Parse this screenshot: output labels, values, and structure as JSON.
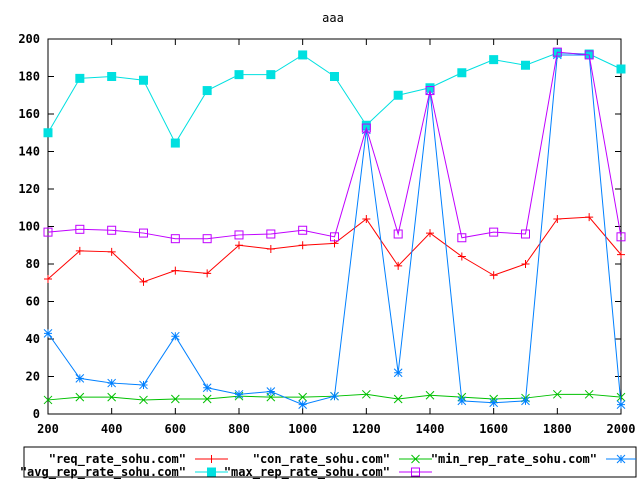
{
  "chart_data": {
    "type": "line",
    "title": "aaa",
    "xlabel": "",
    "ylabel": "",
    "xlim": [
      200,
      2000
    ],
    "ylim": [
      0,
      200
    ],
    "grid": false,
    "legend_position": "bottom",
    "x": [
      200,
      300,
      400,
      500,
      600,
      700,
      800,
      900,
      1000,
      1100,
      1200,
      1300,
      1400,
      1500,
      1600,
      1700,
      1800,
      1900,
      2000
    ],
    "x_ticks": [
      200,
      400,
      600,
      800,
      1000,
      1200,
      1400,
      1600,
      1800,
      2000
    ],
    "y_ticks": [
      0,
      20,
      40,
      60,
      80,
      100,
      120,
      140,
      160,
      180,
      200
    ],
    "series": [
      {
        "name": "\"req_rate_sohu.com\"",
        "color": "#ff0000",
        "marker": "plus",
        "values": [
          72,
          87,
          86.5,
          70.5,
          76.5,
          75,
          90,
          88,
          90,
          91,
          104,
          79,
          96.5,
          84,
          74,
          80,
          104,
          105,
          85
        ]
      },
      {
        "name": "\"con_rate_sohu.com\"",
        "color": "#00c000",
        "marker": "cross",
        "values": [
          7.5,
          9,
          9,
          7.5,
          8,
          8,
          9.5,
          9,
          9,
          9.5,
          10.5,
          8,
          10,
          9,
          8,
          8.5,
          10.5,
          10.5,
          9
        ]
      },
      {
        "name": "\"min_rep_rate_sohu.com\"",
        "color": "#0080ff",
        "marker": "star",
        "values": [
          43,
          19,
          16.5,
          15.5,
          41.5,
          14,
          10.5,
          12,
          5,
          9.5,
          151.5,
          22,
          172.5,
          7,
          6,
          7,
          191.5,
          191.5,
          5
        ]
      },
      {
        "name": "\"avg_rep_rate_sohu.com\"",
        "color": "#00e0e0",
        "marker": "filled-square",
        "values": [
          150,
          179,
          180,
          178,
          144.5,
          172.5,
          181,
          181,
          191.5,
          180,
          154,
          170,
          174,
          182,
          189,
          186,
          192.5,
          192,
          184
        ]
      },
      {
        "name": "\"max_rep_rate_sohu.com\"",
        "color": "#c000ff",
        "marker": "open-square",
        "values": [
          97,
          98.5,
          98,
          96.5,
          93.5,
          93.5,
          95.5,
          96,
          98,
          94.5,
          152.5,
          96,
          172.5,
          94,
          97,
          96,
          193,
          191.5,
          94.5
        ]
      }
    ]
  }
}
